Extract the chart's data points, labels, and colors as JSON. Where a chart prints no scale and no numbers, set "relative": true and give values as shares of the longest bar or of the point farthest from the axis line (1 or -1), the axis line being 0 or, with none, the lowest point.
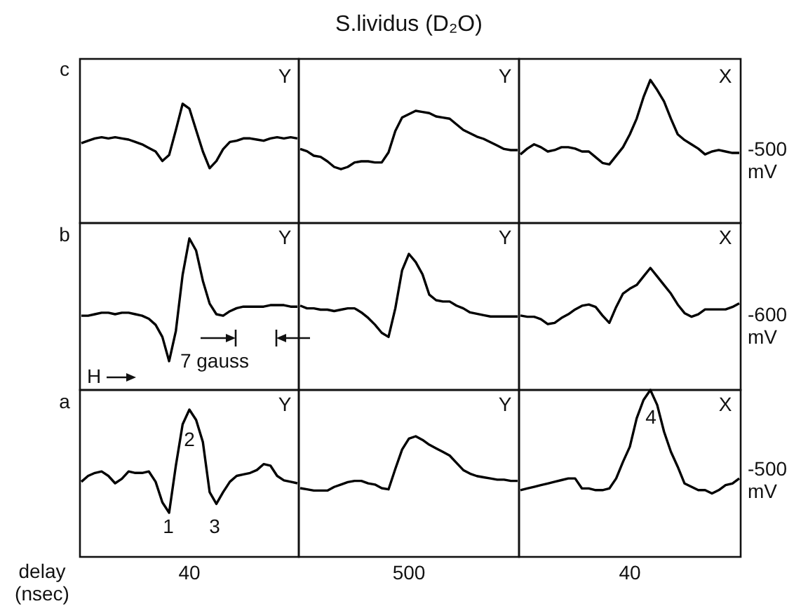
{
  "chart_data": [
    {
      "type": "line",
      "relative": true,
      "color": "#000000",
      "categories": [
        null,
        null,
        null,
        null,
        null,
        null,
        null,
        null,
        null,
        null,
        null,
        null,
        null,
        null,
        null,
        null,
        null,
        null,
        null,
        null,
        null,
        null,
        null,
        null,
        null,
        null,
        null,
        null,
        null,
        null,
        null,
        null,
        null
      ],
      "values": [
        0.67,
        0.69,
        0.71,
        0.72,
        0.71,
        0.72,
        0.71,
        0.7,
        0.68,
        0.66,
        0.63,
        0.6,
        0.52,
        0.57,
        0.78,
        1,
        0.96,
        0.78,
        0.6,
        0.46,
        0.52,
        0.62,
        0.68,
        0.69,
        0.71,
        0.71,
        0.7,
        0.69,
        0.71,
        0.72,
        0.71,
        0.72,
        0.71
      ],
      "annotations": [
        "c",
        "Y"
      ]
    },
    {
      "type": "line",
      "relative": true,
      "color": "#000000",
      "title": "S.lividus (D₂O)",
      "categories": [
        null,
        null,
        null,
        null,
        null,
        null,
        null,
        null,
        null,
        null,
        null,
        null,
        null,
        null,
        null,
        null,
        null,
        null,
        null,
        null,
        null,
        null,
        null,
        null,
        null,
        null,
        null,
        null,
        null,
        null,
        null,
        null,
        null
      ],
      "values": [
        0.66,
        0.64,
        0.6,
        0.59,
        0.55,
        0.5,
        0.48,
        0.5,
        0.54,
        0.55,
        0.55,
        0.54,
        0.54,
        0.63,
        0.82,
        0.94,
        0.97,
        1,
        0.99,
        0.98,
        0.95,
        0.94,
        0.93,
        0.88,
        0.83,
        0.8,
        0.77,
        0.75,
        0.72,
        0.69,
        0.66,
        0.65,
        0.65
      ],
      "annotations": [
        "Y"
      ]
    },
    {
      "type": "line",
      "relative": true,
      "color": "#000000",
      "categories": [
        null,
        null,
        null,
        null,
        null,
        null,
        null,
        null,
        null,
        null,
        null,
        null,
        null,
        null,
        null,
        null,
        null,
        null,
        null,
        null,
        null,
        null,
        null,
        null,
        null,
        null,
        null,
        null,
        null,
        null,
        null,
        null,
        null
      ],
      "values": [
        0.48,
        0.52,
        0.55,
        0.53,
        0.5,
        0.51,
        0.53,
        0.53,
        0.52,
        0.5,
        0.5,
        0.46,
        0.42,
        0.41,
        0.47,
        0.53,
        0.62,
        0.73,
        0.88,
        1,
        0.93,
        0.85,
        0.73,
        0.62,
        0.58,
        0.55,
        0.52,
        0.48,
        0.5,
        0.51,
        0.5,
        0.49,
        0.49
      ],
      "annotations": [
        "X",
        "-500 mV"
      ]
    },
    {
      "type": "line",
      "relative": true,
      "color": "#000000",
      "categories": [
        null,
        null,
        null,
        null,
        null,
        null,
        null,
        null,
        null,
        null,
        null,
        null,
        null,
        null,
        null,
        null,
        null,
        null,
        null,
        null,
        null,
        null,
        null,
        null,
        null,
        null,
        null,
        null,
        null,
        null,
        null,
        null,
        null
      ],
      "values": [
        0.49,
        0.49,
        0.5,
        0.51,
        0.51,
        0.5,
        0.51,
        0.51,
        0.5,
        0.49,
        0.47,
        0.43,
        0.35,
        0.19,
        0.39,
        0.76,
        1,
        0.92,
        0.72,
        0.57,
        0.5,
        0.49,
        0.52,
        0.54,
        0.55,
        0.55,
        0.55,
        0.55,
        0.56,
        0.56,
        0.56,
        0.55,
        0.55
      ],
      "annotations": [
        "b",
        "Y",
        "7 gauss",
        "H"
      ]
    },
    {
      "type": "line",
      "relative": true,
      "color": "#000000",
      "categories": [
        null,
        null,
        null,
        null,
        null,
        null,
        null,
        null,
        null,
        null,
        null,
        null,
        null,
        null,
        null,
        null,
        null,
        null,
        null,
        null,
        null,
        null,
        null,
        null,
        null,
        null,
        null,
        null,
        null,
        null,
        null,
        null,
        null
      ],
      "values": [
        0.62,
        0.6,
        0.6,
        0.59,
        0.59,
        0.58,
        0.59,
        0.6,
        0.6,
        0.57,
        0.53,
        0.48,
        0.42,
        0.39,
        0.6,
        0.88,
        1,
        0.94,
        0.85,
        0.7,
        0.66,
        0.65,
        0.65,
        0.62,
        0.6,
        0.57,
        0.56,
        0.55,
        0.54,
        0.54,
        0.54,
        0.54,
        0.54
      ],
      "annotations": [
        "Y"
      ]
    },
    {
      "type": "line",
      "relative": true,
      "color": "#000000",
      "categories": [
        null,
        null,
        null,
        null,
        null,
        null,
        null,
        null,
        null,
        null,
        null,
        null,
        null,
        null,
        null,
        null,
        null,
        null,
        null,
        null,
        null,
        null,
        null,
        null,
        null,
        null,
        null,
        null,
        null,
        null,
        null,
        null,
        null
      ],
      "values": [
        0.61,
        0.6,
        0.6,
        0.58,
        0.54,
        0.55,
        0.59,
        0.62,
        0.66,
        0.69,
        0.7,
        0.68,
        0.61,
        0.55,
        0.68,
        0.79,
        0.83,
        0.86,
        0.93,
        1,
        0.93,
        0.86,
        0.79,
        0.7,
        0.63,
        0.6,
        0.62,
        0.66,
        0.66,
        0.66,
        0.66,
        0.68,
        0.71
      ],
      "annotations": [
        "X",
        "-600 mV"
      ]
    },
    {
      "type": "line",
      "relative": true,
      "color": "#000000",
      "xlabel": "40",
      "categories": [
        null,
        null,
        null,
        null,
        null,
        null,
        null,
        null,
        null,
        null,
        null,
        null,
        null,
        null,
        null,
        null,
        null,
        null,
        null,
        null,
        null,
        null,
        null,
        null,
        null,
        null,
        null,
        null,
        null,
        null,
        null,
        null,
        null
      ],
      "values": [
        0.51,
        0.55,
        0.57,
        0.58,
        0.55,
        0.5,
        0.53,
        0.58,
        0.57,
        0.57,
        0.58,
        0.51,
        0.37,
        0.3,
        0.62,
        0.9,
        1,
        0.93,
        0.78,
        0.44,
        0.36,
        0.44,
        0.51,
        0.55,
        0.56,
        0.57,
        0.59,
        0.63,
        0.62,
        0.55,
        0.52,
        0.51,
        0.5
      ],
      "annotations": [
        "a",
        "Y",
        "1",
        "2",
        "3",
        "delay (nsec)"
      ]
    },
    {
      "type": "line",
      "relative": true,
      "color": "#000000",
      "xlabel": "500",
      "categories": [
        null,
        null,
        null,
        null,
        null,
        null,
        null,
        null,
        null,
        null,
        null,
        null,
        null,
        null,
        null,
        null,
        null,
        null,
        null,
        null,
        null,
        null,
        null,
        null,
        null,
        null,
        null,
        null,
        null,
        null,
        null,
        null,
        null
      ],
      "values": [
        0.57,
        0.56,
        0.55,
        0.55,
        0.55,
        0.58,
        0.6,
        0.62,
        0.63,
        0.63,
        0.61,
        0.6,
        0.57,
        0.56,
        0.73,
        0.89,
        0.98,
        1,
        0.97,
        0.93,
        0.9,
        0.87,
        0.84,
        0.78,
        0.72,
        0.69,
        0.67,
        0.66,
        0.65,
        0.64,
        0.64,
        0.63,
        0.63
      ],
      "annotations": [
        "Y"
      ]
    },
    {
      "type": "line",
      "relative": true,
      "color": "#000000",
      "xlabel": "40",
      "categories": [
        null,
        null,
        null,
        null,
        null,
        null,
        null,
        null,
        null,
        null,
        null,
        null,
        null,
        null,
        null,
        null,
        null,
        null,
        null,
        null,
        null,
        null,
        null,
        null,
        null,
        null,
        null,
        null,
        null,
        null,
        null,
        null,
        null
      ],
      "values": [
        0.4,
        0.41,
        0.42,
        0.43,
        0.44,
        0.45,
        0.46,
        0.47,
        0.47,
        0.41,
        0.41,
        0.4,
        0.4,
        0.41,
        0.47,
        0.57,
        0.66,
        0.83,
        0.94,
        1,
        0.91,
        0.75,
        0.63,
        0.54,
        0.44,
        0.42,
        0.4,
        0.4,
        0.38,
        0.4,
        0.43,
        0.44,
        0.47
      ],
      "annotations": [
        "X",
        "4",
        "-500 mV"
      ]
    }
  ]
}
